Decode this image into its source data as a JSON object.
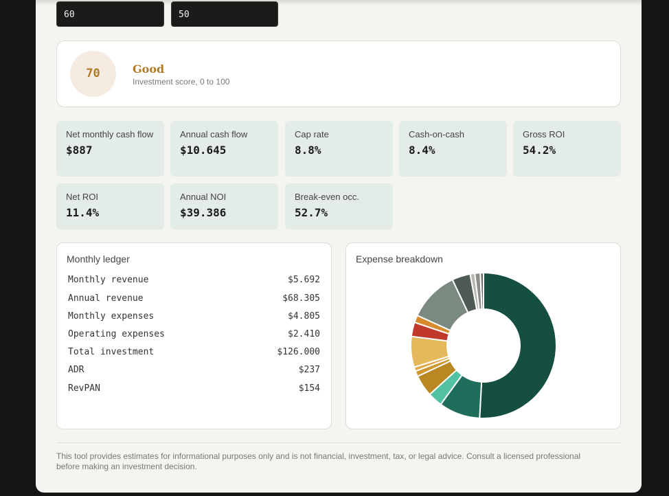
{
  "inputs": {
    "field_a_value": "60",
    "field_b_value": "50"
  },
  "score": {
    "value": "70",
    "rating": "Good",
    "caption": "Investment score, 0 to 100"
  },
  "metrics": [
    {
      "label": "Net monthly cash flow",
      "value": "$887"
    },
    {
      "label": "Annual cash flow",
      "value": "$10.645"
    },
    {
      "label": "Cap rate",
      "value": "8.8%"
    },
    {
      "label": "Cash-on-cash",
      "value": "8.4%"
    },
    {
      "label": "Gross ROI",
      "value": "54.2%"
    },
    {
      "label": "Net ROI",
      "value": "11.4%"
    },
    {
      "label": "Annual NOI",
      "value": "$39.386"
    },
    {
      "label": "Break-even occ.",
      "value": "52.7%"
    }
  ],
  "ledger": {
    "title": "Monthly ledger",
    "rows": [
      {
        "label": "Monthly revenue",
        "value": "$5.692"
      },
      {
        "label": "Annual revenue",
        "value": "$68.305"
      },
      {
        "label": "Monthly expenses",
        "value": "$4.805"
      },
      {
        "label": "Operating expenses",
        "value": "$2.410"
      },
      {
        "label": "Total investment",
        "value": "$126.000"
      },
      {
        "label": "ADR",
        "value": "$237"
      },
      {
        "label": "RevPAN",
        "value": "$154"
      }
    ]
  },
  "expense_breakdown": {
    "title": "Expense breakdown",
    "chart_data": {
      "type": "pie",
      "donut": true,
      "start": "top, clockwise",
      "slices": [
        {
          "share": 0.5,
          "color": "#154f42"
        },
        {
          "share": 0.09,
          "color": "#1f6e5c"
        },
        {
          "share": 0.032,
          "color": "#52c2a2"
        },
        {
          "share": 0.047,
          "color": "#b98822"
        },
        {
          "share": 0.012,
          "color": "#cf962f"
        },
        {
          "share": 0.009,
          "color": "#e0a846"
        },
        {
          "share": 0.067,
          "color": "#e3b95c"
        },
        {
          "share": 0.031,
          "color": "#c0392b"
        },
        {
          "share": 0.016,
          "color": "#d88a2c"
        },
        {
          "share": 0.11,
          "color": "#7a8a81"
        },
        {
          "share": 0.04,
          "color": "#4f5a55"
        },
        {
          "share": 0.01,
          "color": "#b8b8b0"
        },
        {
          "share": 0.012,
          "color": "#8b8f89"
        },
        {
          "share": 0.007,
          "color": "#6b6e69"
        }
      ]
    }
  },
  "disclaimer": "This tool provides estimates for informational purposes only and is not financial, investment, tax, or legal advice. Consult a licensed professional before making an investment decision."
}
